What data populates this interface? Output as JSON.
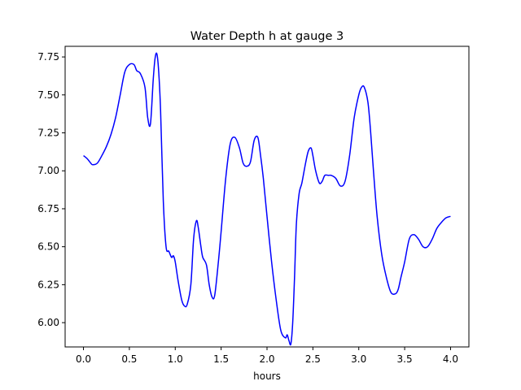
{
  "chart_data": {
    "type": "line",
    "title": "Water Depth h at gauge 3",
    "xlabel": "hours",
    "ylabel": "",
    "xlim": [
      -0.2,
      4.2
    ],
    "ylim": [
      5.84,
      7.82
    ],
    "grid": false,
    "xticks": [
      0.0,
      0.5,
      1.0,
      1.5,
      2.0,
      2.5,
      3.0,
      3.5,
      4.0
    ],
    "xtick_labels": [
      "0.0",
      "0.5",
      "1.0",
      "1.5",
      "2.0",
      "2.5",
      "3.0",
      "3.5",
      "4.0"
    ],
    "yticks": [
      6.0,
      6.25,
      6.5,
      6.75,
      7.0,
      7.25,
      7.5,
      7.75
    ],
    "ytick_labels": [
      "6.00",
      "6.25",
      "6.50",
      "6.75",
      "7.00",
      "7.25",
      "7.50",
      "7.75"
    ],
    "series": [
      {
        "color": "#0000ff",
        "x": [
          0.0,
          0.04,
          0.08,
          0.1,
          0.15,
          0.2,
          0.25,
          0.3,
          0.35,
          0.4,
          0.45,
          0.5,
          0.55,
          0.58,
          0.62,
          0.67,
          0.7,
          0.73,
          0.76,
          0.78,
          0.8,
          0.82,
          0.84,
          0.87,
          0.9,
          0.93,
          0.96,
          0.98,
          1.0,
          1.03,
          1.07,
          1.1,
          1.13,
          1.17,
          1.2,
          1.23,
          1.25,
          1.28,
          1.3,
          1.34,
          1.37,
          1.4,
          1.43,
          1.47,
          1.5,
          1.55,
          1.6,
          1.65,
          1.7,
          1.74,
          1.78,
          1.82,
          1.86,
          1.9,
          1.93,
          1.96,
          2.0,
          2.05,
          2.1,
          2.15,
          2.2,
          2.22,
          2.24,
          2.26,
          2.28,
          2.3,
          2.32,
          2.35,
          2.38,
          2.42,
          2.45,
          2.48,
          2.5,
          2.53,
          2.57,
          2.6,
          2.63,
          2.67,
          2.7,
          2.75,
          2.8,
          2.85,
          2.9,
          2.95,
          3.0,
          3.03,
          3.06,
          3.1,
          3.13,
          3.16,
          3.2,
          3.25,
          3.3,
          3.35,
          3.4,
          3.43,
          3.46,
          3.5,
          3.55,
          3.6,
          3.65,
          3.7,
          3.75,
          3.8,
          3.85,
          3.9,
          3.95,
          4.0
        ],
        "values": [
          7.1,
          7.08,
          7.05,
          7.04,
          7.05,
          7.1,
          7.16,
          7.24,
          7.35,
          7.5,
          7.65,
          7.7,
          7.7,
          7.66,
          7.64,
          7.55,
          7.35,
          7.31,
          7.6,
          7.74,
          7.77,
          7.65,
          7.4,
          6.8,
          6.5,
          6.47,
          6.43,
          6.44,
          6.4,
          6.28,
          6.15,
          6.11,
          6.12,
          6.25,
          6.55,
          6.67,
          6.63,
          6.5,
          6.43,
          6.38,
          6.25,
          6.17,
          6.18,
          6.4,
          6.6,
          6.95,
          7.18,
          7.22,
          7.15,
          7.05,
          7.03,
          7.06,
          7.2,
          7.22,
          7.1,
          6.95,
          6.7,
          6.4,
          6.15,
          5.95,
          5.9,
          5.92,
          5.88,
          5.86,
          6.0,
          6.3,
          6.65,
          6.85,
          6.92,
          7.05,
          7.13,
          7.15,
          7.1,
          7.0,
          6.92,
          6.93,
          6.97,
          6.97,
          6.97,
          6.95,
          6.9,
          6.93,
          7.1,
          7.35,
          7.5,
          7.55,
          7.55,
          7.45,
          7.25,
          7.0,
          6.7,
          6.45,
          6.3,
          6.2,
          6.19,
          6.22,
          6.3,
          6.4,
          6.55,
          6.58,
          6.55,
          6.5,
          6.5,
          6.55,
          6.62,
          6.66,
          6.69,
          6.7
        ]
      }
    ]
  }
}
